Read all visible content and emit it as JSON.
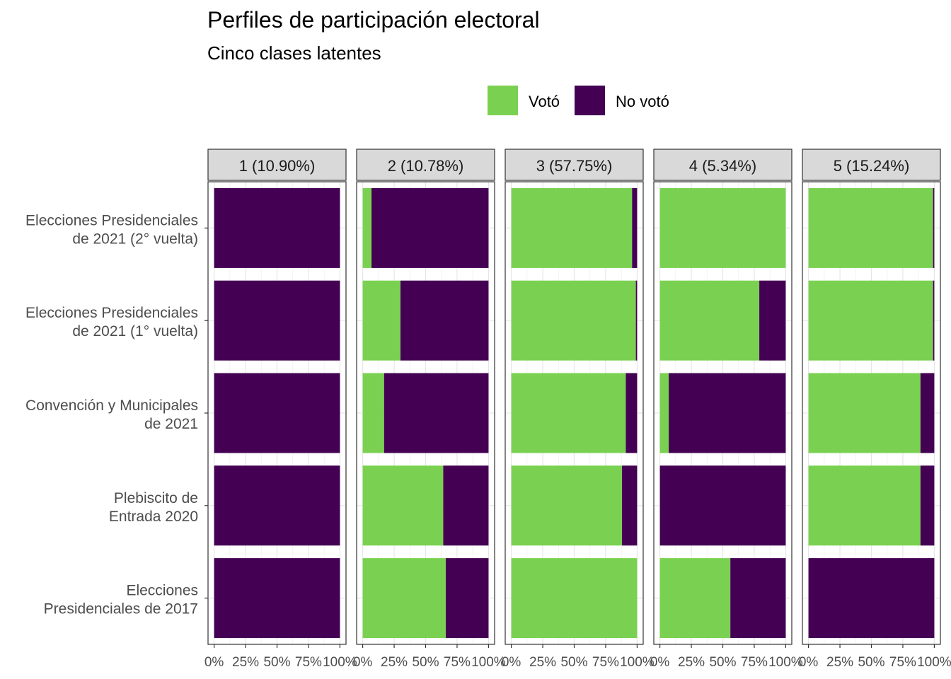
{
  "chart_data": {
    "type": "bar",
    "orientation": "horizontal",
    "stacked": "percent",
    "title": "Perfiles de participación electoral",
    "subtitle": "Cinco clases latentes",
    "legend": {
      "placement": "top",
      "items": [
        {
          "label": "Votó",
          "color": "#7AD151"
        },
        {
          "label": "No votó",
          "color": "#440154"
        }
      ]
    },
    "categories": [
      [
        "Elecciones Presidenciales",
        "de 2021 (2° vuelta)"
      ],
      [
        "Elecciones Presidenciales",
        "de 2021 (1° vuelta)"
      ],
      [
        "Convención y Municipales",
        "de 2021"
      ],
      [
        "Plebiscito de",
        "Entrada 2020"
      ],
      [
        "Elecciones",
        "Presidenciales de 2017"
      ]
    ],
    "xlim": [
      0,
      1
    ],
    "x_ticks": [
      "0%",
      "25%",
      "50%",
      "75%",
      "100%"
    ],
    "grid": true,
    "facets": [
      {
        "label": "1 (10.90%)",
        "voto": [
          0.0,
          0.0,
          0.0,
          0.0,
          0.0
        ]
      },
      {
        "label": "2 (10.78%)",
        "voto": [
          0.07,
          0.3,
          0.17,
          0.64,
          0.66
        ]
      },
      {
        "label": "3 (57.75%)",
        "voto": [
          0.96,
          0.99,
          0.91,
          0.88,
          1.0
        ]
      },
      {
        "label": "4 (5.34%)",
        "voto": [
          1.0,
          0.79,
          0.07,
          0.0,
          0.56
        ]
      },
      {
        "label": "5 (15.24%)",
        "voto": [
          0.99,
          0.99,
          0.89,
          0.89,
          0.0
        ]
      }
    ]
  }
}
